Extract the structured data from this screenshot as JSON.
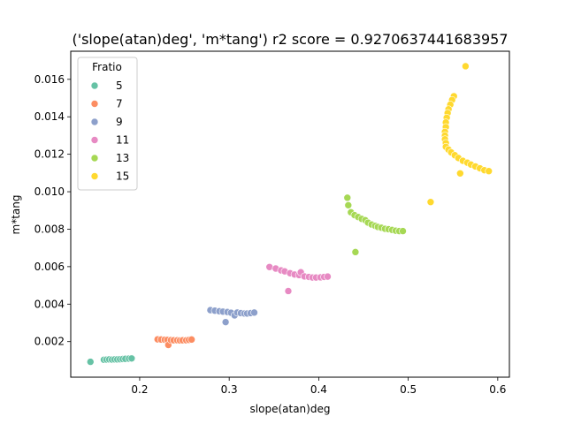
{
  "chart_data": {
    "type": "scatter",
    "title": "('slope(atan)deg', 'm*tang') r2 score = 0.9270637441683957",
    "xlabel": "slope(atan)deg",
    "ylabel": "m*tang",
    "xlim": [
      0.123,
      0.613
    ],
    "ylim": [
      0.0001,
      0.0175
    ],
    "xticks": [
      0.2,
      0.3,
      0.4,
      0.5,
      0.6
    ],
    "xtick_labels": [
      "0.2",
      "0.3",
      "0.4",
      "0.5",
      "0.6"
    ],
    "yticks": [
      0.002,
      0.004,
      0.006,
      0.008,
      0.01,
      0.012,
      0.014,
      0.016
    ],
    "ytick_labels": [
      "0.002",
      "0.004",
      "0.006",
      "0.008",
      "0.010",
      "0.012",
      "0.014",
      "0.016"
    ],
    "grid": false,
    "legend": {
      "title": "Fratio",
      "placement": "top-left"
    },
    "series": [
      {
        "name": "5",
        "color": "#66c2a5",
        "points": [
          [
            0.145,
            0.00092
          ],
          [
            0.16,
            0.00103
          ],
          [
            0.163,
            0.00104
          ],
          [
            0.166,
            0.00105
          ],
          [
            0.169,
            0.00104
          ],
          [
            0.172,
            0.00105
          ],
          [
            0.175,
            0.00105
          ],
          [
            0.178,
            0.00106
          ],
          [
            0.181,
            0.00107
          ],
          [
            0.184,
            0.00108
          ],
          [
            0.188,
            0.00109
          ],
          [
            0.191,
            0.0011
          ]
        ]
      },
      {
        "name": "7",
        "color": "#fc8d62",
        "points": [
          [
            0.22,
            0.00212
          ],
          [
            0.224,
            0.00211
          ],
          [
            0.228,
            0.0021
          ],
          [
            0.231,
            0.00209
          ],
          [
            0.232,
            0.00182
          ],
          [
            0.235,
            0.00208
          ],
          [
            0.238,
            0.00207
          ],
          [
            0.242,
            0.00207
          ],
          [
            0.245,
            0.00206
          ],
          [
            0.248,
            0.00207
          ],
          [
            0.252,
            0.00207
          ],
          [
            0.255,
            0.00209
          ],
          [
            0.258,
            0.00211
          ]
        ]
      },
      {
        "name": "9",
        "color": "#8da0cb",
        "points": [
          [
            0.279,
            0.00368
          ],
          [
            0.284,
            0.00365
          ],
          [
            0.289,
            0.00362
          ],
          [
            0.293,
            0.0036
          ],
          [
            0.296,
            0.00304
          ],
          [
            0.298,
            0.00358
          ],
          [
            0.302,
            0.00354
          ],
          [
            0.306,
            0.0034
          ],
          [
            0.309,
            0.00355
          ],
          [
            0.313,
            0.00352
          ],
          [
            0.317,
            0.0035
          ],
          [
            0.32,
            0.0035
          ],
          [
            0.324,
            0.00352
          ],
          [
            0.328,
            0.00355
          ]
        ]
      },
      {
        "name": "11",
        "color": "#e78ac3",
        "points": [
          [
            0.345,
            0.00598
          ],
          [
            0.352,
            0.0059
          ],
          [
            0.358,
            0.0058
          ],
          [
            0.362,
            0.00575
          ],
          [
            0.366,
            0.0047
          ],
          [
            0.368,
            0.00565
          ],
          [
            0.373,
            0.00558
          ],
          [
            0.378,
            0.00555
          ],
          [
            0.38,
            0.0057
          ],
          [
            0.384,
            0.00548
          ],
          [
            0.389,
            0.00545
          ],
          [
            0.393,
            0.00542
          ],
          [
            0.397,
            0.00542
          ],
          [
            0.402,
            0.00543
          ],
          [
            0.406,
            0.00545
          ],
          [
            0.41,
            0.00547
          ]
        ]
      },
      {
        "name": "13",
        "color": "#a6d854",
        "points": [
          [
            0.432,
            0.00968
          ],
          [
            0.433,
            0.00928
          ],
          [
            0.436,
            0.0089
          ],
          [
            0.44,
            0.00875
          ],
          [
            0.441,
            0.00678
          ],
          [
            0.444,
            0.00865
          ],
          [
            0.448,
            0.00855
          ],
          [
            0.452,
            0.00848
          ],
          [
            0.455,
            0.00835
          ],
          [
            0.459,
            0.00825
          ],
          [
            0.463,
            0.00818
          ],
          [
            0.466,
            0.00812
          ],
          [
            0.47,
            0.00808
          ],
          [
            0.474,
            0.00802
          ],
          [
            0.478,
            0.008
          ],
          [
            0.482,
            0.00796
          ],
          [
            0.486,
            0.00792
          ],
          [
            0.49,
            0.0079
          ],
          [
            0.494,
            0.0079
          ]
        ]
      },
      {
        "name": "15",
        "color": "#ffd92f",
        "points": [
          [
            0.525,
            0.00945
          ],
          [
            0.564,
            0.0167
          ],
          [
            0.551,
            0.0151
          ],
          [
            0.549,
            0.0149
          ],
          [
            0.547,
            0.01465
          ],
          [
            0.545,
            0.0144
          ],
          [
            0.544,
            0.0142
          ],
          [
            0.543,
            0.01395
          ],
          [
            0.542,
            0.0137
          ],
          [
            0.542,
            0.01345
          ],
          [
            0.541,
            0.0132
          ],
          [
            0.541,
            0.013
          ],
          [
            0.541,
            0.0128
          ],
          [
            0.542,
            0.0126
          ],
          [
            0.542,
            0.0124
          ],
          [
            0.545,
            0.01225
          ],
          [
            0.548,
            0.0121
          ],
          [
            0.552,
            0.01195
          ],
          [
            0.556,
            0.0118
          ],
          [
            0.558,
            0.01098
          ],
          [
            0.561,
            0.01165
          ],
          [
            0.566,
            0.01155
          ],
          [
            0.57,
            0.01145
          ],
          [
            0.575,
            0.01135
          ],
          [
            0.58,
            0.01125
          ],
          [
            0.585,
            0.01115
          ],
          [
            0.59,
            0.0111
          ]
        ]
      }
    ]
  }
}
